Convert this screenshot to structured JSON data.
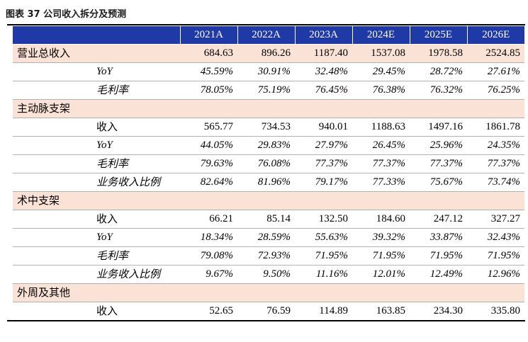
{
  "caption": "图表 37 公司收入拆分及预测",
  "colors": {
    "header_bg": "#1f3aa6",
    "header_text": "#ffffff",
    "category_row_bg": "#fbe2d6"
  },
  "table": {
    "columns": [
      "2021A",
      "2022A",
      "2023A",
      "2024E",
      "2025E",
      "2026E"
    ],
    "rows": [
      {
        "type": "category",
        "label": "营业总收入",
        "values": [
          "684.63",
          "896.26",
          "1187.40",
          "1537.08",
          "1978.58",
          "2524.85"
        ]
      },
      {
        "type": "sub",
        "label": "YoY",
        "style": "italic",
        "values": [
          "45.59%",
          "30.91%",
          "32.48%",
          "29.45%",
          "28.72%",
          "27.61%"
        ]
      },
      {
        "type": "sub",
        "label": "毛利率",
        "style": "italic",
        "values": [
          "78.05%",
          "75.19%",
          "76.45%",
          "76.38%",
          "76.32%",
          "76.25%"
        ]
      },
      {
        "type": "category",
        "label": "主动脉支架",
        "values": [
          "",
          "",
          "",
          "",
          "",
          ""
        ]
      },
      {
        "type": "sub",
        "label": "收入",
        "style": "normal",
        "values": [
          "565.77",
          "734.53",
          "940.01",
          "1188.63",
          "1497.16",
          "1861.78"
        ]
      },
      {
        "type": "sub",
        "label": "YoY",
        "style": "italic",
        "values": [
          "44.05%",
          "29.83%",
          "27.97%",
          "26.45%",
          "25.96%",
          "24.35%"
        ]
      },
      {
        "type": "sub",
        "label": "毛利率",
        "style": "italic",
        "values": [
          "79.63%",
          "76.08%",
          "77.37%",
          "77.37%",
          "77.37%",
          "77.37%"
        ]
      },
      {
        "type": "sub",
        "label": "业务收入比例",
        "style": "italic",
        "values": [
          "82.64%",
          "81.96%",
          "79.17%",
          "77.33%",
          "75.67%",
          "73.74%"
        ]
      },
      {
        "type": "category",
        "label": "术中支架",
        "values": [
          "",
          "",
          "",
          "",
          "",
          ""
        ]
      },
      {
        "type": "sub",
        "label": "收入",
        "style": "normal",
        "values": [
          "66.21",
          "85.14",
          "132.50",
          "184.60",
          "247.12",
          "327.27"
        ]
      },
      {
        "type": "sub",
        "label": "YoY",
        "style": "italic",
        "values": [
          "18.34%",
          "28.59%",
          "55.63%",
          "39.32%",
          "33.87%",
          "32.43%"
        ]
      },
      {
        "type": "sub",
        "label": "毛利率",
        "style": "italic",
        "values": [
          "79.08%",
          "72.93%",
          "71.95%",
          "71.95%",
          "71.95%",
          "71.95%"
        ]
      },
      {
        "type": "sub",
        "label": "业务收入比例",
        "style": "italic",
        "values": [
          "9.67%",
          "9.50%",
          "11.16%",
          "12.01%",
          "12.49%",
          "12.96%"
        ]
      },
      {
        "type": "category",
        "label": "外周及其他",
        "values": [
          "",
          "",
          "",
          "",
          "",
          ""
        ]
      },
      {
        "type": "sub",
        "label": "收入",
        "style": "normal",
        "values": [
          "52.65",
          "76.59",
          "114.89",
          "163.85",
          "234.30",
          "335.80"
        ]
      }
    ]
  }
}
